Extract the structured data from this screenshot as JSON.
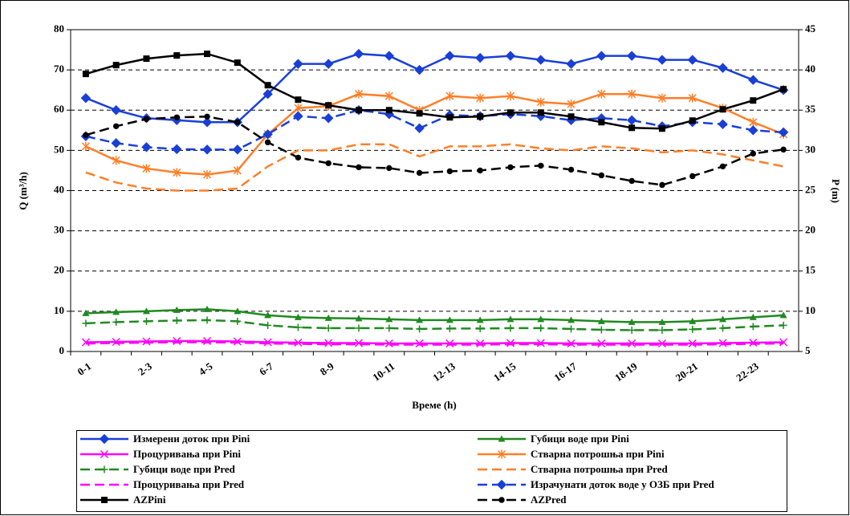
{
  "chart_data": {
    "type": "line",
    "y_label": "Q (m³/h)",
    "y2_label": "P (m)",
    "x_label": "Време (h)",
    "categories": [
      "0-1",
      null,
      "2-3",
      null,
      "4-5",
      null,
      "6-7",
      null,
      "8-9",
      null,
      "10-11",
      null,
      "12-13",
      null,
      "14-15",
      null,
      "16-17",
      null,
      "18-19",
      null,
      "20-21",
      null,
      "22-23",
      null
    ],
    "ylim": [
      0,
      80
    ],
    "yticks": [
      0,
      10,
      20,
      30,
      40,
      50,
      60,
      70,
      80
    ],
    "y2lim": [
      5,
      45
    ],
    "y2ticks": [
      5,
      10,
      15,
      20,
      25,
      30,
      35,
      40,
      45
    ],
    "grid": true,
    "legend": "bottom",
    "series": [
      {
        "name": "Измерени доток при Pini",
        "color": "#1a3fd6",
        "marker": "diamond",
        "dashed": false,
        "values": [
          63,
          60,
          58,
          57.5,
          57,
          57,
          64,
          71.5,
          71.5,
          74,
          73.5,
          70,
          73.5,
          73,
          73.5,
          72.5,
          71.5,
          73.5,
          73.5,
          72.5,
          72.5,
          70.5,
          67.5,
          65
        ]
      },
      {
        "name": "Губици воде при Pini",
        "color": "#1f8a1f",
        "marker": "triangle",
        "dashed": false,
        "values": [
          9.5,
          9.8,
          10,
          10.3,
          10.5,
          10,
          9,
          8.5,
          8.3,
          8.2,
          8,
          7.8,
          7.8,
          7.8,
          8,
          8,
          7.8,
          7.5,
          7.3,
          7.3,
          7.5,
          8,
          8.5,
          9
        ]
      },
      {
        "name": "Процуривања при Pini",
        "color": "#ff00ff",
        "marker": "x",
        "dashed": false,
        "values": [
          2.3,
          2.4,
          2.5,
          2.6,
          2.6,
          2.5,
          2.3,
          2.2,
          2.1,
          2.1,
          2,
          2,
          2,
          2,
          2.1,
          2.1,
          2,
          2,
          2,
          2,
          2,
          2.1,
          2.2,
          2.3
        ]
      },
      {
        "name": "Стварна потрошња при Pini",
        "color": "#ff7f27",
        "marker": "asterisk",
        "dashed": false,
        "values": [
          51,
          47.5,
          45.5,
          44.5,
          44,
          45,
          54,
          60.5,
          61,
          64,
          63.5,
          60,
          63.5,
          63,
          63.5,
          62,
          61.5,
          64,
          64,
          63,
          63,
          60.5,
          57,
          54
        ]
      },
      {
        "name": "Губици воде при Pred",
        "color": "#1f8a1f",
        "marker": "plus",
        "dashed": true,
        "values": [
          7,
          7.3,
          7.5,
          7.7,
          7.8,
          7.5,
          6.5,
          6,
          5.8,
          5.8,
          5.8,
          5.6,
          5.7,
          5.7,
          5.8,
          5.8,
          5.6,
          5.4,
          5.3,
          5.3,
          5.5,
          5.8,
          6.2,
          6.5
        ]
      },
      {
        "name": "Стварна потрошња при Pred",
        "color": "#ff7f27",
        "marker": "none",
        "dashed": true,
        "values": [
          44.5,
          42,
          40.5,
          40,
          40,
          40.5,
          46,
          50,
          50,
          51.5,
          51.5,
          48.5,
          51,
          51,
          51.5,
          50.5,
          50,
          51,
          50.5,
          49.5,
          50,
          49,
          47.5,
          46
        ]
      },
      {
        "name": "Процуривања при Pred",
        "color": "#ff00ff",
        "marker": "none",
        "dashed": true,
        "values": [
          2,
          2.1,
          2.2,
          2.3,
          2.3,
          2.2,
          2,
          1.9,
          1.8,
          1.8,
          1.7,
          1.7,
          1.7,
          1.7,
          1.8,
          1.8,
          1.7,
          1.7,
          1.7,
          1.7,
          1.7,
          1.8,
          1.9,
          2
        ]
      },
      {
        "name": "Израчунати доток воде у ОЗБ при Pred",
        "color": "#1a3fd6",
        "marker": "diamond",
        "dashed": true,
        "values": [
          53.5,
          51.8,
          50.8,
          50.3,
          50.2,
          50.2,
          54,
          58.5,
          58,
          60,
          59,
          55.5,
          58.8,
          58.5,
          59,
          58.5,
          57.5,
          58,
          57.5,
          56,
          57,
          56.5,
          55,
          54.5
        ]
      },
      {
        "name": "AZPini",
        "color": "#000000",
        "marker": "square",
        "dashed": false,
        "axis": "y2",
        "values": [
          39.5,
          40.6,
          41.4,
          41.8,
          42,
          40.9,
          38.1,
          36.3,
          35.6,
          35,
          35,
          34.6,
          34.1,
          34.2,
          34.7,
          34.7,
          34.2,
          33.5,
          32.8,
          32.7,
          33.7,
          35.1,
          36.2,
          37.6
        ]
      },
      {
        "name": "AZPred",
        "color": "#000000",
        "marker": "circle",
        "dashed": true,
        "axis": "y2",
        "values": [
          31.9,
          33,
          33.9,
          34.1,
          34.2,
          33.5,
          31,
          29.1,
          28.4,
          27.9,
          27.8,
          27.2,
          27.4,
          27.5,
          27.9,
          28.1,
          27.6,
          26.9,
          26.2,
          25.7,
          26.8,
          28,
          29.6,
          30.1
        ]
      }
    ]
  }
}
